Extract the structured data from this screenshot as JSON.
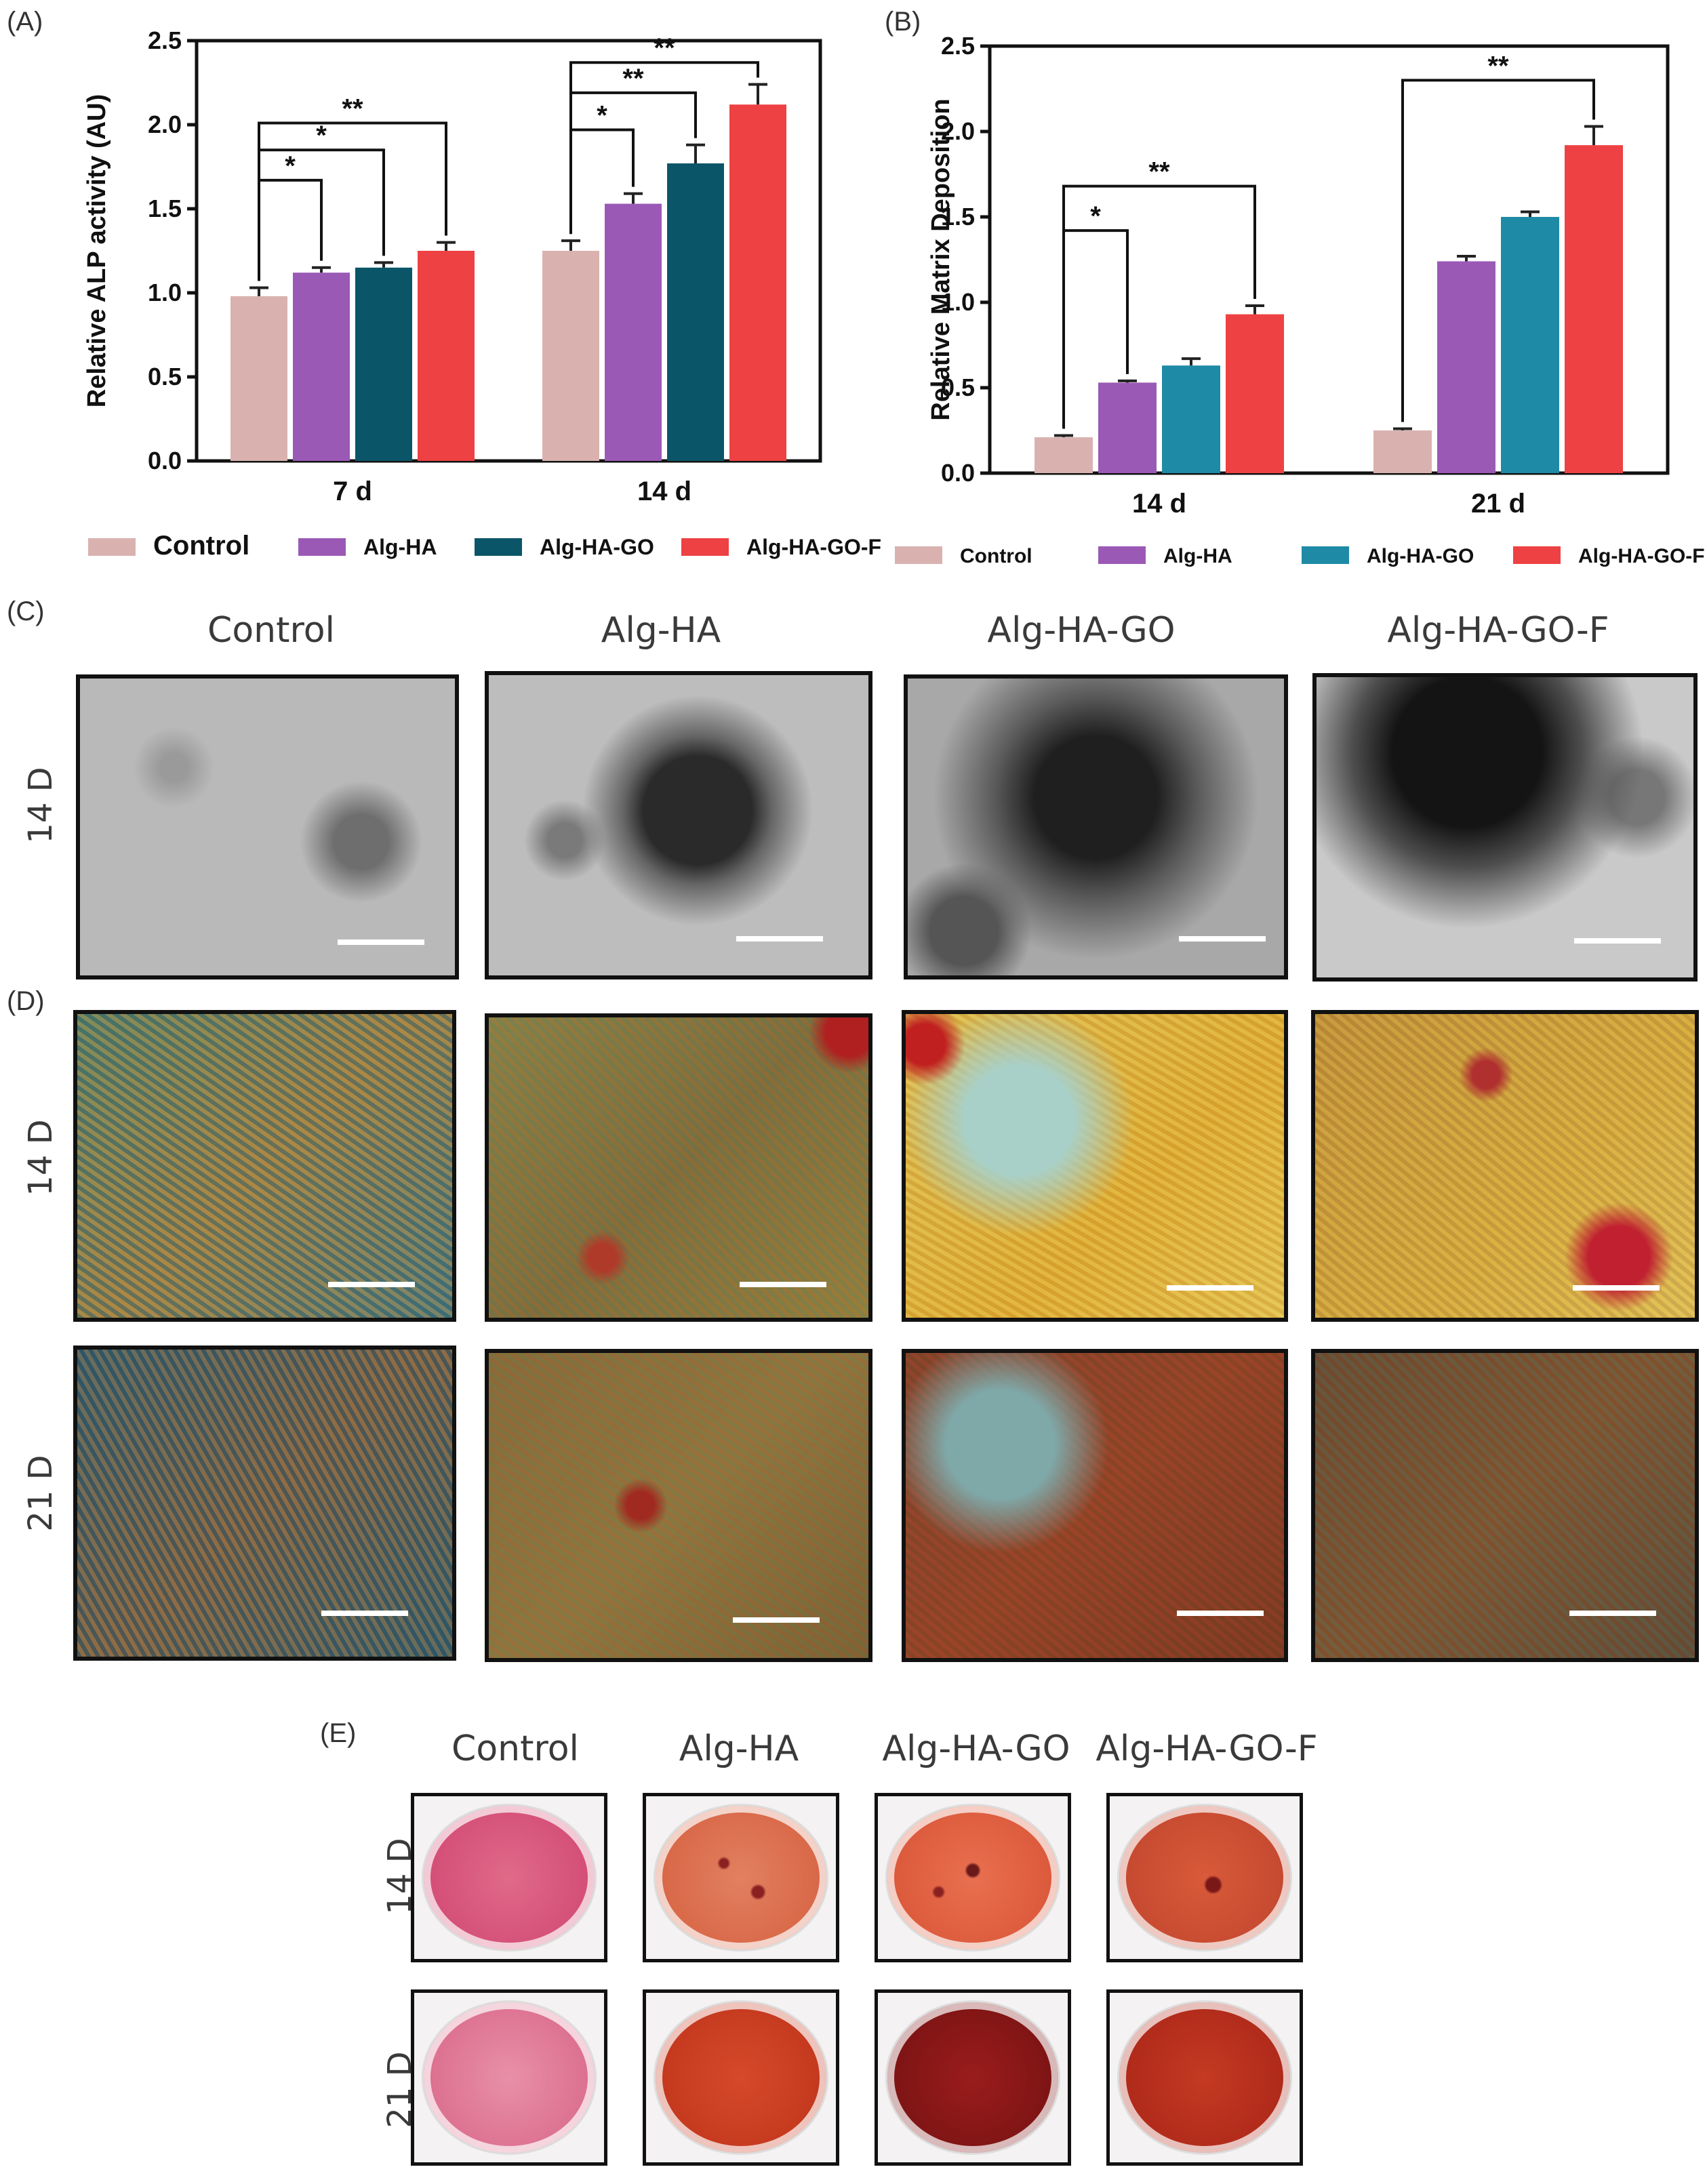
{
  "panels": {
    "a": "(A)",
    "b": "(B)",
    "c": "(C)",
    "d": "(D)",
    "e": "(E)"
  },
  "colors": {
    "Control": "#d9b2b0",
    "Alg-HA": "#9b59b6",
    "Alg-HA-GO_A": "#0b5568",
    "Alg-HA-GO_B": "#1e8aa6",
    "Alg-HA-GO-F": "#ee4143"
  },
  "chart_data": [
    {
      "type": "bar",
      "ylabel": "Relative ALP activity (AU)",
      "ylim": [
        0,
        2.5
      ],
      "yticks": [
        "0.0",
        "0.5",
        "1.0",
        "1.5",
        "2.0",
        "2.5"
      ],
      "categories": [
        "7 d",
        "14 d"
      ],
      "series": [
        {
          "name": "Control",
          "values": [
            0.98,
            1.25
          ],
          "errors": [
            0.05,
            0.06
          ]
        },
        {
          "name": "Alg-HA",
          "values": [
            1.12,
            1.53
          ],
          "errors": [
            0.03,
            0.06
          ]
        },
        {
          "name": "Alg-HA-GO",
          "values": [
            1.15,
            1.77
          ],
          "errors": [
            0.03,
            0.11
          ]
        },
        {
          "name": "Alg-HA-GO-F",
          "values": [
            1.25,
            2.12
          ],
          "errors": [
            0.05,
            0.12
          ]
        }
      ],
      "legend_labels": [
        "Control",
        "Alg-HA",
        "Alg-HA-GO",
        "Alg-HA-GO-F"
      ],
      "legend_position": "bottom",
      "annotations": [
        "*",
        "*",
        "**",
        "*",
        "**",
        "**"
      ]
    },
    {
      "type": "bar",
      "ylabel": "Relative Matrix Deposition",
      "ylim": [
        0,
        2.5
      ],
      "yticks": [
        "0.0",
        "0.5",
        "1.0",
        "1.5",
        "2.0",
        "2.5"
      ],
      "categories": [
        "14 d",
        "21 d"
      ],
      "series": [
        {
          "name": "Control",
          "values": [
            0.21,
            0.25
          ],
          "errors": [
            0.01,
            0.01
          ]
        },
        {
          "name": "Alg-HA",
          "values": [
            0.53,
            1.24
          ],
          "errors": [
            0.01,
            0.03
          ]
        },
        {
          "name": "Alg-HA-GO",
          "values": [
            0.63,
            1.5
          ],
          "errors": [
            0.04,
            0.03
          ]
        },
        {
          "name": "Alg-HA-GO-F",
          "values": [
            0.93,
            1.92
          ],
          "errors": [
            0.05,
            0.11
          ]
        }
      ],
      "legend_labels": [
        "Control",
        "Alg-HA",
        "Alg-HA-GO",
        "Alg-HA-GO-F"
      ],
      "legend_position": "bottom",
      "annotations": [
        "*",
        "**",
        "**"
      ]
    }
  ],
  "grid": {
    "col_labels": [
      "Control",
      "Alg-HA",
      "Alg-HA-GO",
      "Alg-HA-GO-F"
    ],
    "row_c": "14 D",
    "row_d1": "14 D",
    "row_d2": "21 D"
  },
  "dishes": {
    "col_labels": [
      "Control",
      "Alg-HA",
      "Alg-HA-GO",
      "Alg-HA-GO-F"
    ],
    "row1": "14 D",
    "row2": "21 D"
  }
}
